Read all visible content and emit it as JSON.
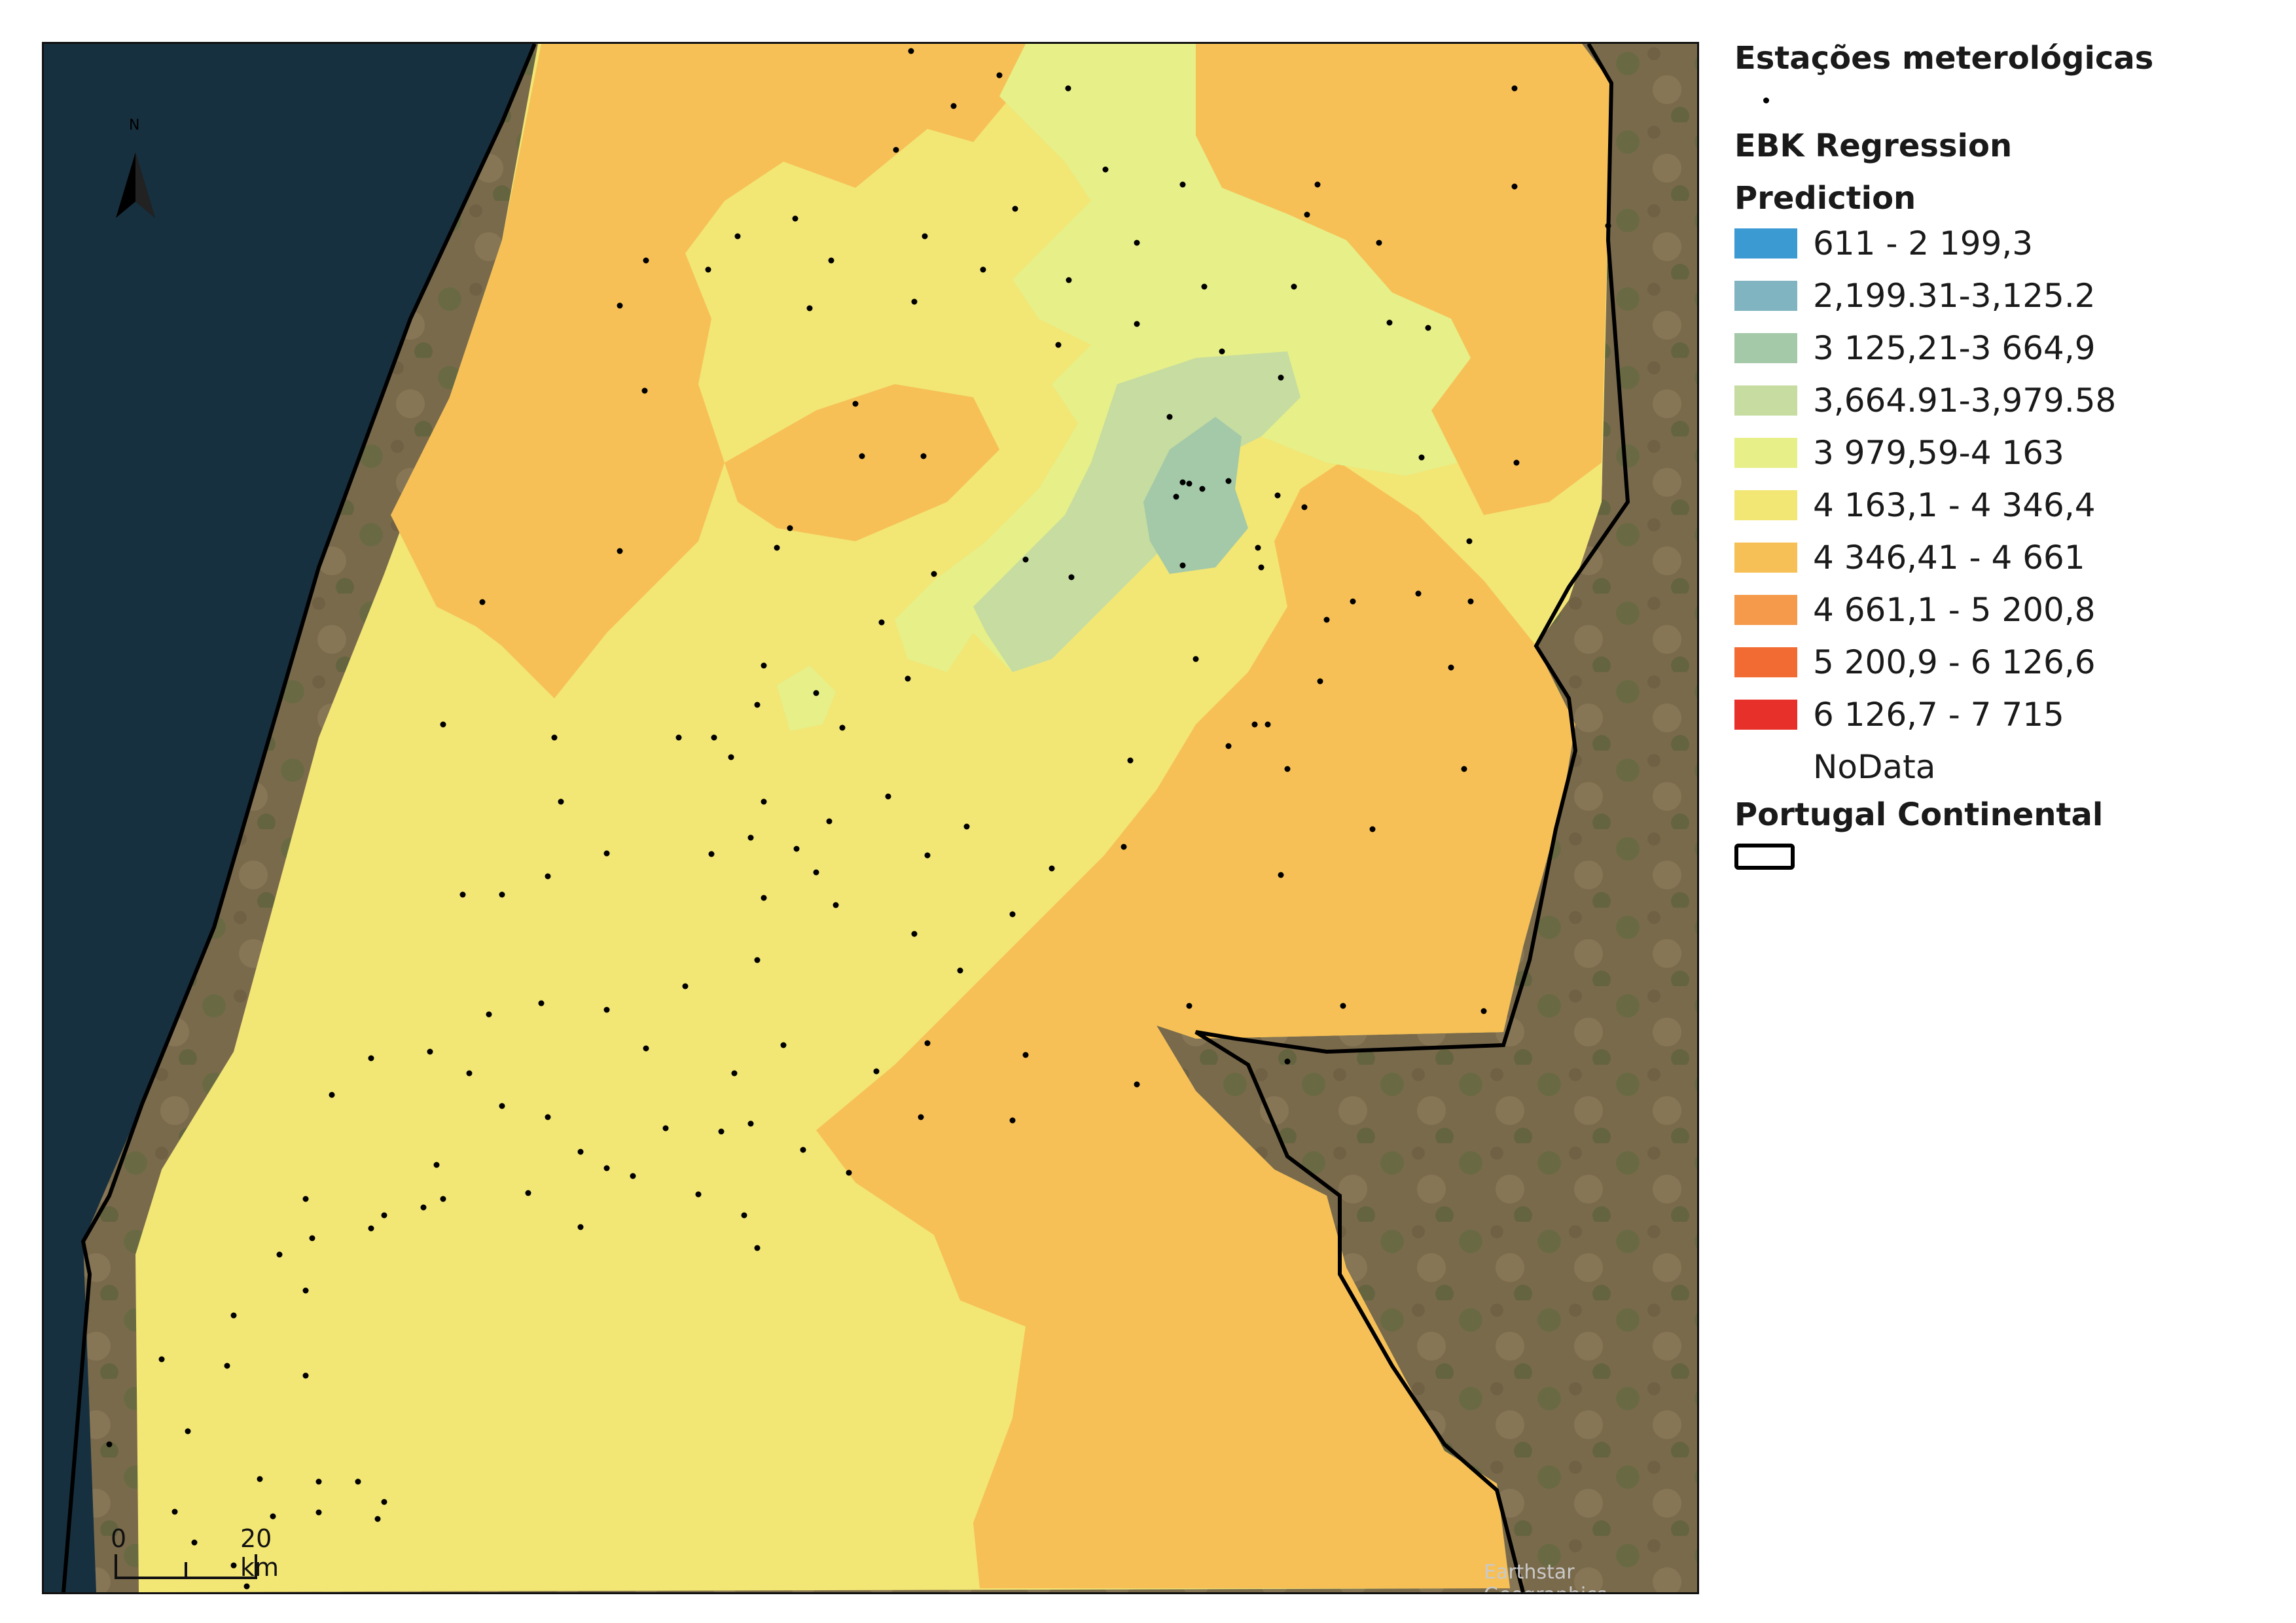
{
  "map": {
    "type": "choropleth_interpolation",
    "basemap": "satellite imagery",
    "attribution": "Earthstar Geographics",
    "scale_bar": {
      "start_label": "0",
      "end_label": "20 km"
    },
    "north_arrow": {
      "label": "N",
      "icon": "north-arrow-icon"
    }
  },
  "legend": {
    "stations_title": "Estações meterológicas",
    "ebk_title": "EBK Regression",
    "prediction_title": "Prediction",
    "classes": [
      {
        "label": "611 - 2 199,3",
        "color": "#3b9ad1"
      },
      {
        "label": "2,199.31-3,125.2",
        "color": "#7fb4c0"
      },
      {
        "label": "3 125,21-3 664,9",
        "color": "#a3c9a8"
      },
      {
        "label": "3,664.91-3,979.58",
        "color": "#c6dca0"
      },
      {
        "label": "3 979,59-4 163",
        "color": "#e6ef88"
      },
      {
        "label": "4 163,1 - 4 346,4",
        "color": "#f2e675"
      },
      {
        "label": "4 346,41 - 4 661",
        "color": "#f6c056"
      },
      {
        "label": "4 661,1 - 5 200,8",
        "color": "#f59a4a"
      },
      {
        "label": "5 200,9 - 6 126,6",
        "color": "#f26b32"
      },
      {
        "label": "6 126,7 - 7 715",
        "color": "#e8302a"
      }
    ],
    "nodata_label": "NoData",
    "boundary_title": "Portugal Continental"
  }
}
